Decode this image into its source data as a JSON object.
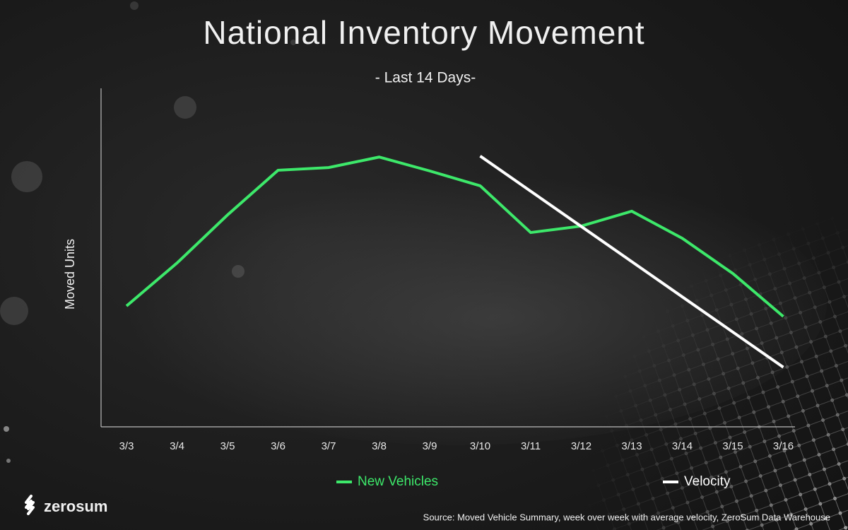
{
  "chart_data": {
    "type": "line",
    "title": "National Inventory Movement",
    "subtitle": "- Last 14 Days-",
    "y_label": "Moved Units",
    "categories": [
      "3/3",
      "3/4",
      "3/5",
      "3/6",
      "3/7",
      "3/8",
      "3/9",
      "3/10",
      "3/11",
      "3/12",
      "3/13",
      "3/14",
      "3/15",
      "3/16"
    ],
    "series": [
      {
        "name": "New Vehicles",
        "color": "#3de86a",
        "values": [
          35.7,
          48.4,
          62.6,
          75.8,
          76.6,
          79.7,
          75.6,
          71.2,
          57.4,
          59.3,
          63.7,
          55.7,
          45.3,
          32.6
        ]
      },
      {
        "name": "Velocity",
        "color": "#ffffff",
        "values": [
          null,
          null,
          null,
          null,
          null,
          null,
          null,
          80.0,
          69.6,
          59.2,
          48.8,
          38.4,
          28.0,
          17.6
        ]
      }
    ],
    "ylim": [
      0,
      100
    ],
    "legend": "bottom",
    "brand": "zerosum",
    "source": "Source: Moved Vehicle Summary, week over week with average velocity, ZeroSum Data Warehouse"
  }
}
